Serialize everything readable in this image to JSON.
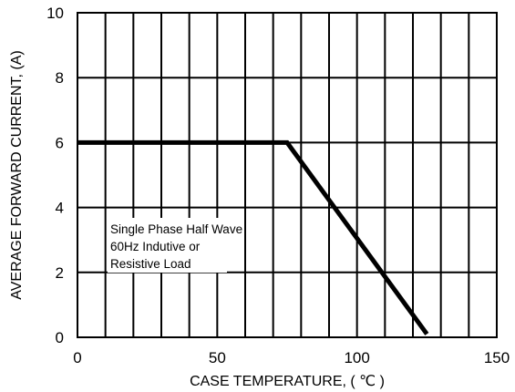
{
  "chart_data": {
    "type": "line",
    "title": "",
    "xlabel": "CASE TEMPERATURE, ( ℃ )",
    "ylabel": "AVERAGE FORWARD  CURRENT, (A)",
    "xlim": [
      0,
      150
    ],
    "ylim": [
      0,
      10
    ],
    "x_ticks": [
      0,
      50,
      100,
      150
    ],
    "x_tick_labels": [
      "0",
      "50",
      "100",
      "150"
    ],
    "y_ticks": [
      0,
      2,
      4,
      6,
      8,
      10
    ],
    "y_tick_labels": [
      "0",
      "2",
      "4",
      "6",
      "8",
      "10"
    ],
    "x_grid": [
      0,
      10,
      20,
      30,
      40,
      50,
      60,
      70,
      80,
      90,
      100,
      110,
      120,
      130,
      140,
      150
    ],
    "y_grid": [
      0,
      2,
      4,
      6,
      8,
      10
    ],
    "grid": true,
    "series": [
      {
        "x": [
          0,
          75,
          125
        ],
        "y": [
          6,
          6,
          0.1
        ]
      }
    ],
    "annotation": {
      "lines": [
        "Single Phase Half Wave",
        "60Hz Indutive or",
        "Resistive Load"
      ]
    },
    "colors": {
      "line": "#000000",
      "grid": "#000000",
      "background": "#ffffff"
    }
  }
}
